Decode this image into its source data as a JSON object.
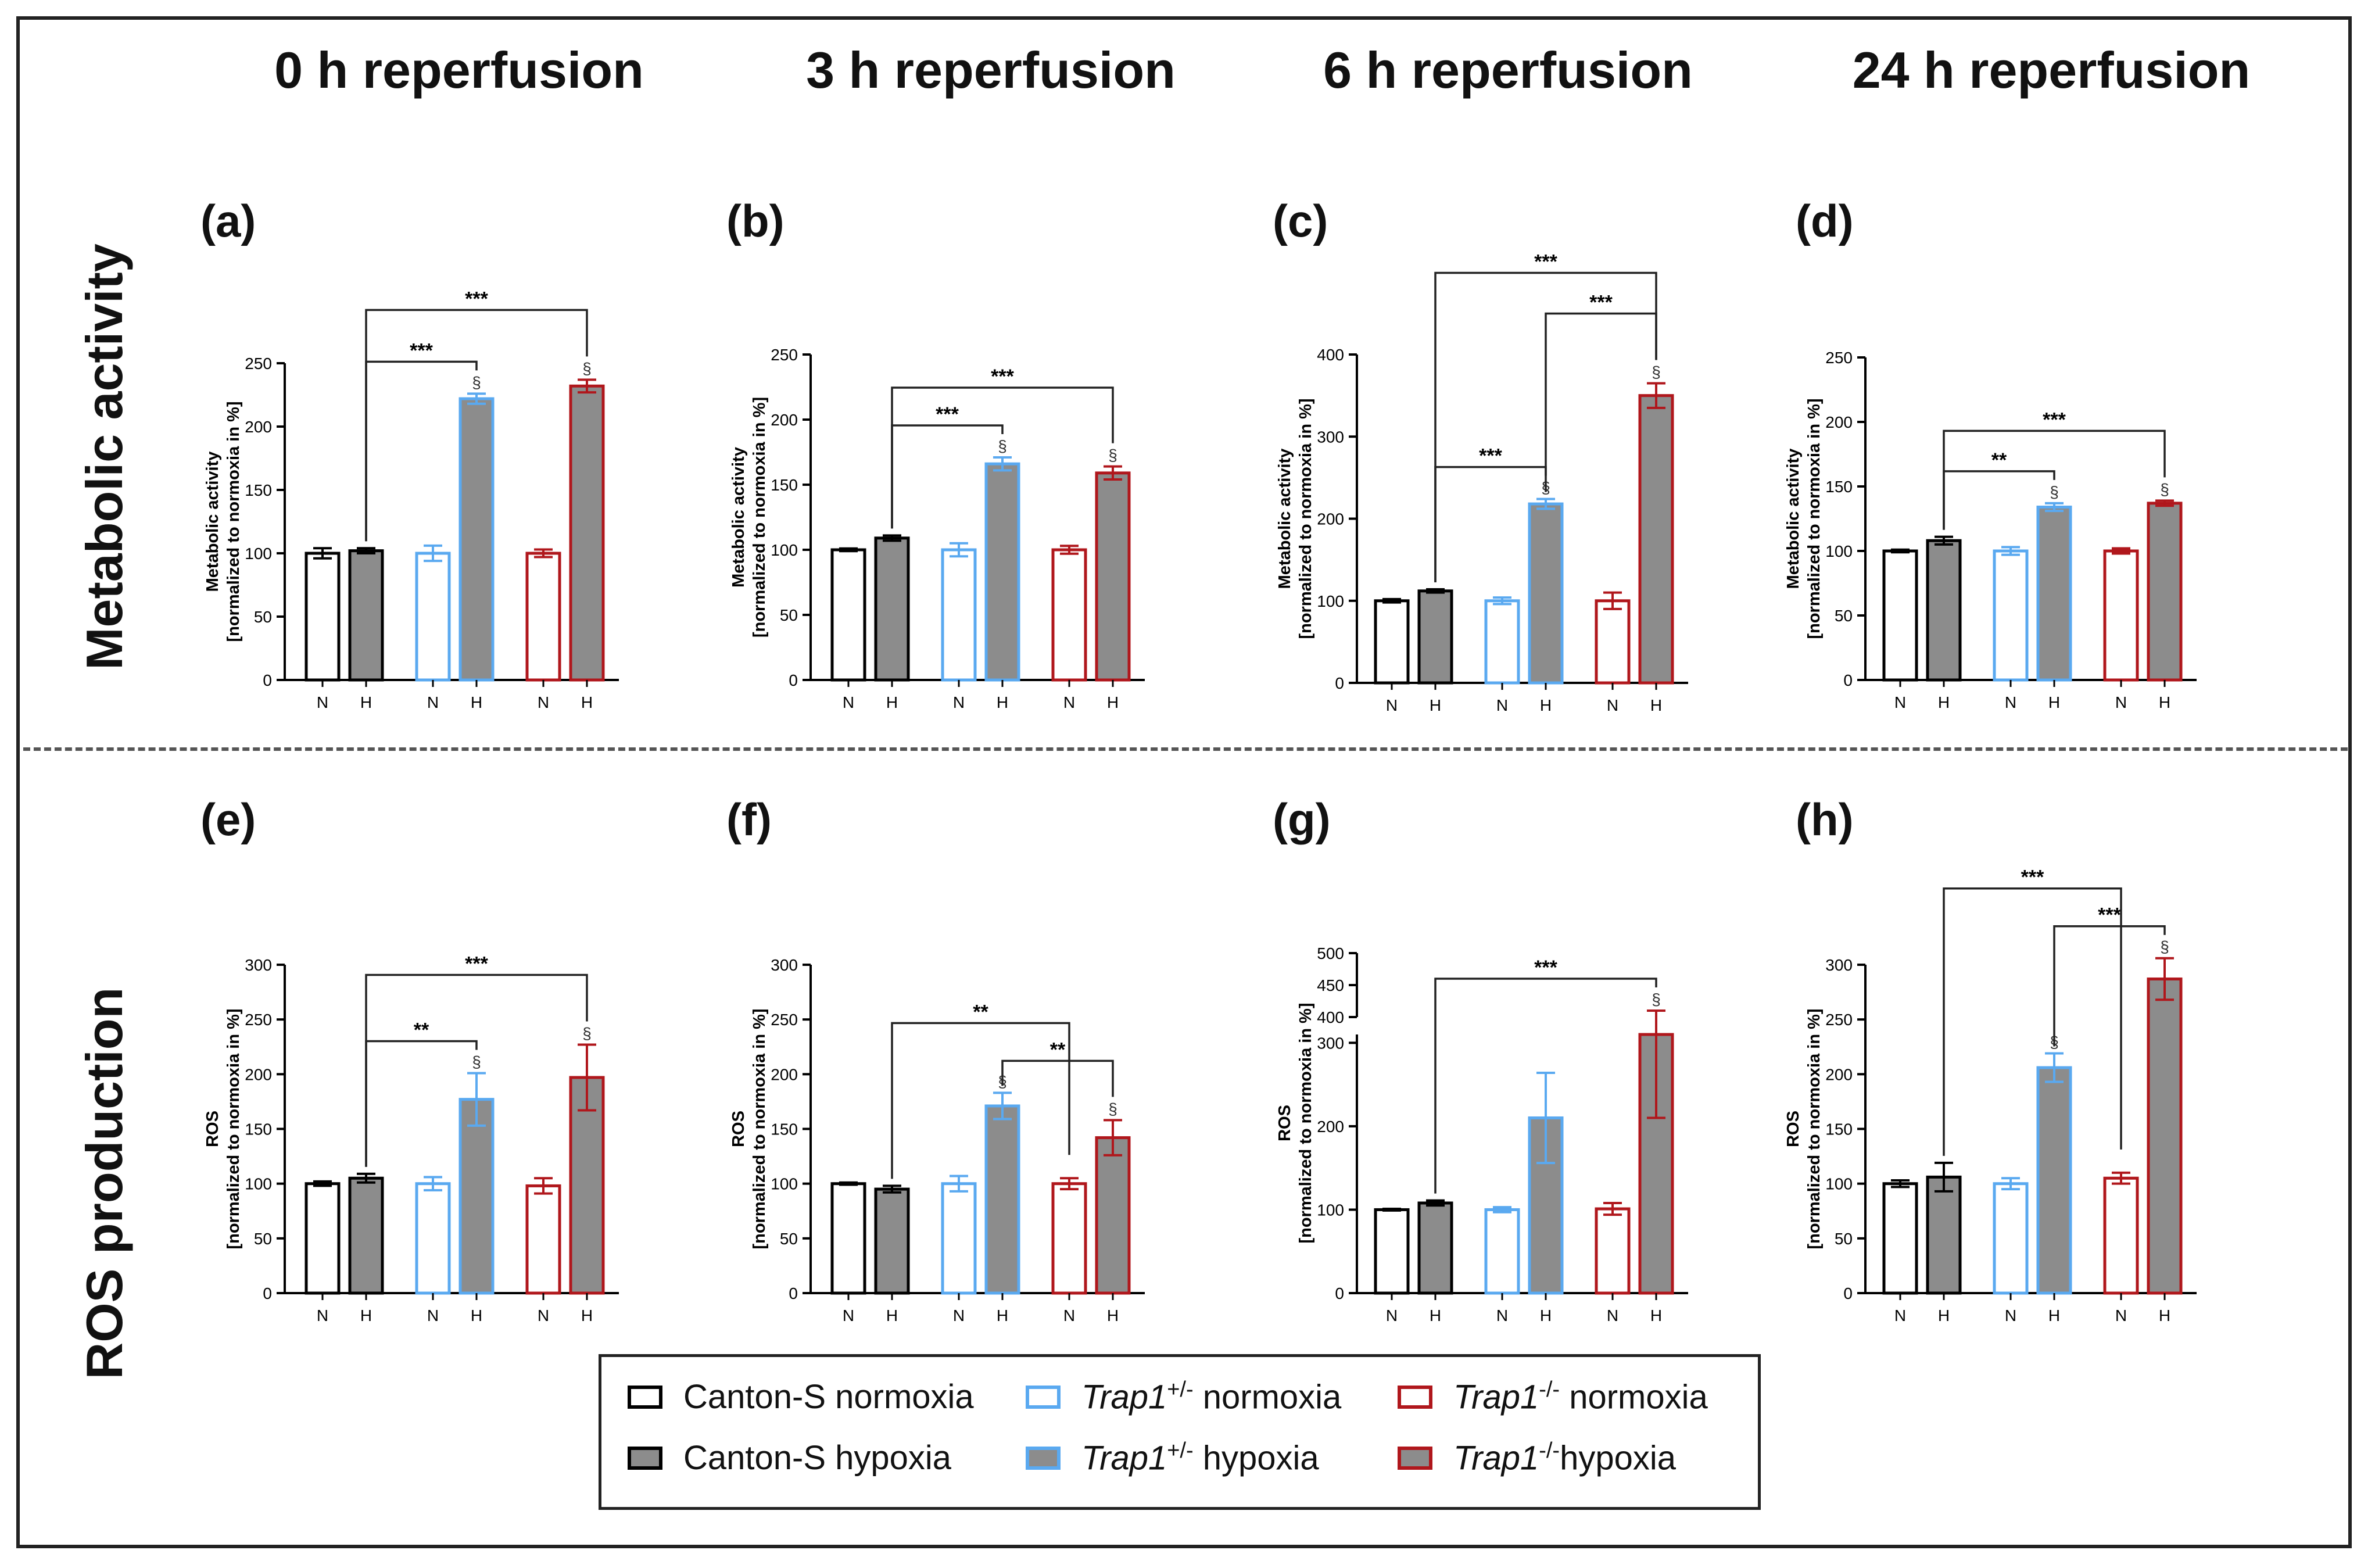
{
  "figure": {
    "column_titles": [
      "0 h reperfusion",
      "3 h reperfusion",
      "6 h reperfusion",
      "24 h reperfusion"
    ],
    "row_titles": [
      "Metabolic activity",
      "ROS production"
    ]
  },
  "colors": {
    "canton": "#000000",
    "trap_het": "#5aa9f0",
    "trap_ko": "#b0171c",
    "hypoxia_fill": "#8c8c8c",
    "normoxia_fill": "#ffffff"
  },
  "legend": {
    "items": [
      {
        "text_pre": "",
        "italic": "",
        "sup": "",
        "text_post": "Canton-S normoxia",
        "group": "canton",
        "cond": "N"
      },
      {
        "text_pre": "",
        "italic": "",
        "sup": "",
        "text_post": "Canton-S hypoxia",
        "group": "canton",
        "cond": "H"
      },
      {
        "text_pre": "",
        "italic": "Trap1",
        "sup": "+/-",
        "text_post": " normoxia",
        "group": "trap_het",
        "cond": "N"
      },
      {
        "text_pre": "",
        "italic": "Trap1",
        "sup": "+/-",
        "text_post": " hypoxia",
        "group": "trap_het",
        "cond": "H"
      },
      {
        "text_pre": "",
        "italic": "Trap1",
        "sup": "-/-",
        "text_post": " normoxia",
        "group": "trap_ko",
        "cond": "N"
      },
      {
        "text_pre": "",
        "italic": "Trap1",
        "sup": "-/-",
        "text_post": "hypoxia",
        "group": "trap_ko",
        "cond": "H"
      }
    ]
  },
  "chart_data": [
    {
      "panel": "(a)",
      "type": "bar",
      "ylabel": [
        "Metabolic activity",
        "[normalized to normoxia in %]"
      ],
      "categories": [
        "N",
        "H",
        "N",
        "H",
        "N",
        "H"
      ],
      "groups": [
        "canton",
        "canton",
        "trap_het",
        "trap_het",
        "trap_ko",
        "trap_ko"
      ],
      "values": [
        100,
        102,
        100,
        222,
        100,
        232
      ],
      "errors": [
        4,
        2,
        6,
        4,
        3,
        5
      ],
      "dagger": [
        false,
        false,
        false,
        true,
        false,
        true
      ],
      "ylim": [
        0,
        250
      ],
      "yticks": [
        0,
        50,
        100,
        150,
        200,
        250
      ],
      "sig": [
        {
          "from": 1,
          "to": 3,
          "label": "***",
          "level": 0
        },
        {
          "from": 1,
          "to": 5,
          "label": "***",
          "level": 1
        }
      ]
    },
    {
      "panel": "(b)",
      "type": "bar",
      "ylabel": [
        "Metabolic activity",
        "[normalized to normoxia in %]"
      ],
      "categories": [
        "N",
        "H",
        "N",
        "H",
        "N",
        "H"
      ],
      "groups": [
        "canton",
        "canton",
        "trap_het",
        "trap_het",
        "trap_ko",
        "trap_ko"
      ],
      "values": [
        100,
        109,
        100,
        166,
        100,
        159
      ],
      "errors": [
        1,
        2,
        5,
        5,
        3,
        5
      ],
      "dagger": [
        false,
        false,
        false,
        true,
        false,
        true
      ],
      "ylim": [
        0,
        250
      ],
      "yticks": [
        0,
        50,
        100,
        150,
        200,
        250
      ],
      "sig": [
        {
          "from": 1,
          "to": 3,
          "label": "***",
          "level": 0
        },
        {
          "from": 1,
          "to": 5,
          "label": "***",
          "level": 1
        }
      ]
    },
    {
      "panel": "(c)",
      "type": "bar",
      "ylabel": [
        "Metabolic activity",
        "[normalized to normoxia in %]"
      ],
      "categories": [
        "N",
        "H",
        "N",
        "H",
        "N",
        "H"
      ],
      "groups": [
        "canton",
        "canton",
        "trap_het",
        "trap_het",
        "trap_ko",
        "trap_ko"
      ],
      "values": [
        100,
        112,
        100,
        218,
        100,
        350
      ],
      "errors": [
        2,
        2,
        4,
        6,
        10,
        15
      ],
      "dagger": [
        false,
        false,
        false,
        true,
        false,
        true
      ],
      "ylim": [
        0,
        400
      ],
      "yticks": [
        0,
        100,
        200,
        300,
        400
      ],
      "sig": [
        {
          "from": 1,
          "to": 3,
          "label": "***",
          "level": 0
        },
        {
          "from": 3,
          "to": 5,
          "label": "***",
          "level": 1
        },
        {
          "from": 1,
          "to": 5,
          "label": "***",
          "level": 2
        }
      ]
    },
    {
      "panel": "(d)",
      "type": "bar",
      "ylabel": [
        "Metabolic activity",
        "[normalized to normoxia in %]"
      ],
      "categories": [
        "N",
        "H",
        "N",
        "H",
        "N",
        "H"
      ],
      "groups": [
        "canton",
        "canton",
        "trap_het",
        "trap_het",
        "trap_ko",
        "trap_ko"
      ],
      "values": [
        100,
        108,
        100,
        134,
        100,
        137
      ],
      "errors": [
        1,
        3,
        3,
        3,
        2,
        2
      ],
      "dagger": [
        false,
        false,
        false,
        true,
        false,
        true
      ],
      "ylim": [
        0,
        250
      ],
      "yticks": [
        0,
        50,
        100,
        150,
        200,
        250
      ],
      "sig": [
        {
          "from": 1,
          "to": 3,
          "label": "**",
          "level": 0
        },
        {
          "from": 1,
          "to": 5,
          "label": "***",
          "level": 1
        }
      ]
    },
    {
      "panel": "(e)",
      "type": "bar",
      "ylabel": [
        "ROS",
        "[normalized to normoxia in %]"
      ],
      "categories": [
        "N",
        "H",
        "N",
        "H",
        "N",
        "H"
      ],
      "groups": [
        "canton",
        "canton",
        "trap_het",
        "trap_het",
        "trap_ko",
        "trap_ko"
      ],
      "values": [
        100,
        105,
        100,
        177,
        98,
        197
      ],
      "errors": [
        2,
        4,
        6,
        24,
        7,
        30
      ],
      "dagger": [
        false,
        false,
        false,
        true,
        false,
        true
      ],
      "ylim": [
        0,
        300
      ],
      "yticks": [
        0,
        50,
        100,
        150,
        200,
        250,
        300
      ],
      "sig": [
        {
          "from": 1,
          "to": 3,
          "label": "**",
          "level": 0
        },
        {
          "from": 1,
          "to": 5,
          "label": "***",
          "level": 1
        }
      ]
    },
    {
      "panel": "(f)",
      "type": "bar",
      "ylabel": [
        "ROS",
        "[normalized to normoxia in %]"
      ],
      "categories": [
        "N",
        "H",
        "N",
        "H",
        "N",
        "H"
      ],
      "groups": [
        "canton",
        "canton",
        "trap_het",
        "trap_het",
        "trap_ko",
        "trap_ko"
      ],
      "values": [
        100,
        95,
        100,
        171,
        100,
        142
      ],
      "errors": [
        1,
        3,
        7,
        12,
        5,
        16
      ],
      "dagger": [
        false,
        false,
        false,
        true,
        false,
        true
      ],
      "ylim": [
        0,
        300
      ],
      "yticks": [
        0,
        50,
        100,
        150,
        200,
        250,
        300
      ],
      "sig": [
        {
          "from": 3,
          "to": 5,
          "label": "**",
          "level": 0
        },
        {
          "from": 1,
          "to": 4,
          "label": "**",
          "level": 1
        }
      ]
    },
    {
      "panel": "(g)",
      "type": "bar",
      "ylabel": [
        "ROS",
        "[normalized to normoxia in %]"
      ],
      "categories": [
        "N",
        "H",
        "N",
        "H",
        "N",
        "H"
      ],
      "groups": [
        "canton",
        "canton",
        "trap_het",
        "trap_het",
        "trap_ko",
        "trap_ko"
      ],
      "values": [
        100,
        108,
        100,
        210,
        101,
        310
      ],
      "errors": [
        1,
        3,
        3,
        54,
        7,
        100
      ],
      "dagger": [
        false,
        false,
        false,
        false,
        false,
        true
      ],
      "broken_axis": true,
      "ylim_lower": [
        0,
        310
      ],
      "ylim_upper": [
        400,
        500
      ],
      "yticks": [
        0,
        100,
        200,
        300,
        400,
        450,
        500
      ],
      "sig": [
        {
          "from": 1,
          "to": 5,
          "label": "***",
          "level": 0
        }
      ]
    },
    {
      "panel": "(h)",
      "type": "bar",
      "ylabel": [
        "ROS",
        "[normalized to normoxia in %]"
      ],
      "categories": [
        "N",
        "H",
        "N",
        "H",
        "N",
        "H"
      ],
      "groups": [
        "canton",
        "canton",
        "trap_het",
        "trap_het",
        "trap_ko",
        "trap_ko"
      ],
      "values": [
        100,
        106,
        100,
        206,
        105,
        287
      ],
      "errors": [
        3,
        13,
        5,
        13,
        5,
        19
      ],
      "dagger": [
        false,
        false,
        false,
        true,
        false,
        true
      ],
      "ylim": [
        0,
        300
      ],
      "yticks": [
        0,
        50,
        100,
        150,
        200,
        250,
        300
      ],
      "sig": [
        {
          "from": 3,
          "to": 5,
          "label": "***",
          "level": 0
        },
        {
          "from": 1,
          "to": 4,
          "label": "***",
          "level": 1
        }
      ]
    }
  ],
  "panel_labels": [
    "(a)",
    "(b)",
    "(c)",
    "(d)",
    "(e)",
    "(f)",
    "(g)",
    "(h)"
  ],
  "dagger_symbol": "§"
}
